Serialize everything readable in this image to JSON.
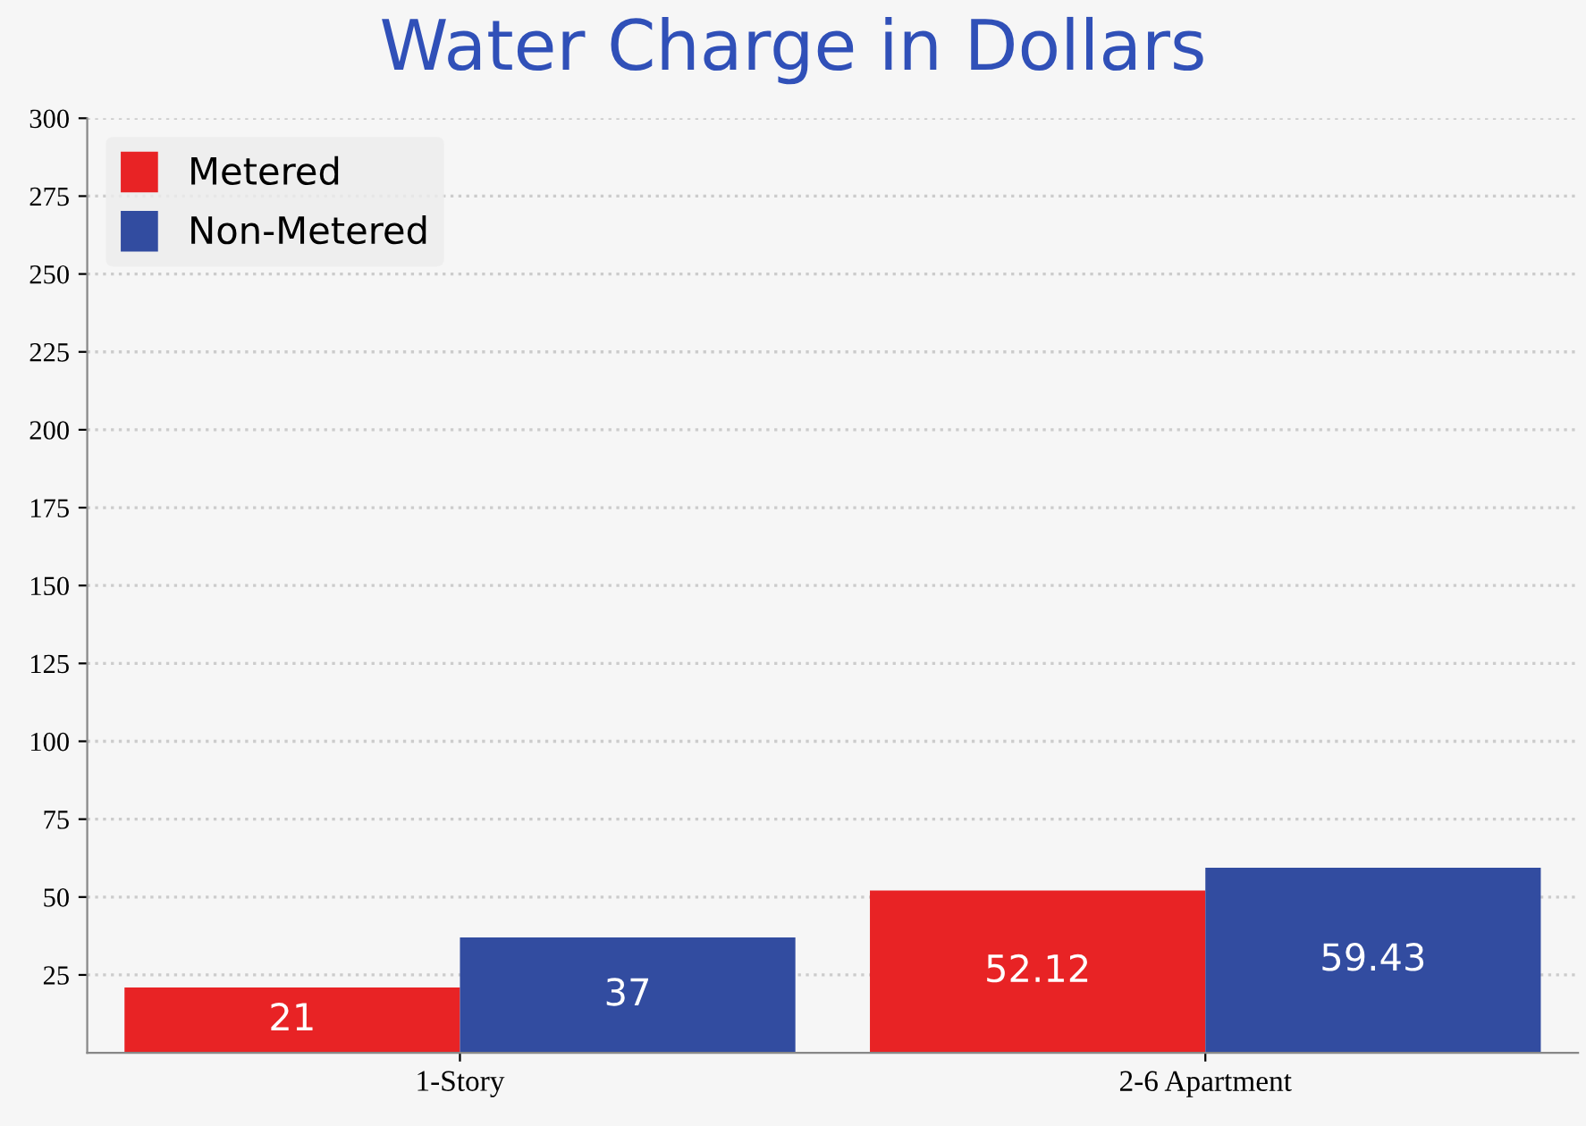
{
  "chart_data": {
    "type": "bar",
    "title": "Water Charge in Dollars",
    "categories": [
      "1-Story",
      "2-6 Apartment"
    ],
    "series": [
      {
        "name": "Metered",
        "color": "#e82325",
        "values": [
          21,
          52.12
        ]
      },
      {
        "name": "Non-Metered",
        "color": "#324ca0",
        "values": [
          37,
          59.43
        ]
      }
    ],
    "ylim": [
      0,
      300
    ],
    "yticks": [
      25,
      50,
      75,
      100,
      125,
      150,
      175,
      200,
      225,
      250,
      275,
      300
    ],
    "grid": "y",
    "legend": "top left",
    "data_labels": true
  }
}
